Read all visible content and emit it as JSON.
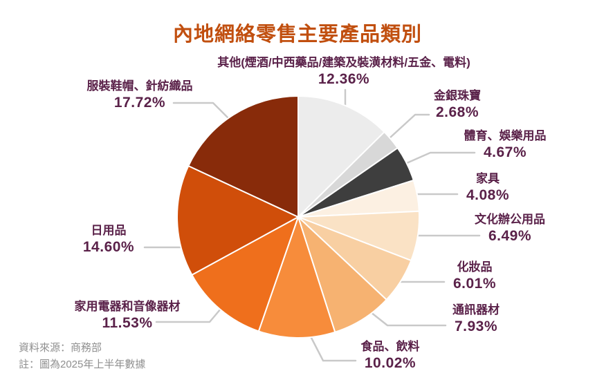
{
  "title": "內地網絡零售主要產品類別",
  "footer": {
    "source": "資料來源：商務部",
    "note": "註：圖為2025年上半年數據"
  },
  "colors": {
    "title": "#C14F0F",
    "label_text": "#5A2149",
    "leader_line": "#C9C9C9",
    "footer_text": "#8F8F8F",
    "background": "#FFFFFF"
  },
  "chart_data": {
    "type": "pie",
    "title": "內地網絡零售主要產品類別",
    "legend_position": "labels-around-pie",
    "start_angle_deg": 0,
    "direction": "clockwise-from-top",
    "slices": [
      {
        "name": "其他(煙酒/中西藥品/建築及裝潢材料/五金、電料)",
        "value": 12.36,
        "pct": "12.36%",
        "color": "#ECECEC"
      },
      {
        "name": "金銀珠寶",
        "value": 2.68,
        "pct": "2.68%",
        "color": "#D8D8D8"
      },
      {
        "name": "體育、娛樂用品",
        "value": 4.67,
        "pct": "4.67%",
        "color": "#3E3E3E"
      },
      {
        "name": "家具",
        "value": 4.08,
        "pct": "4.08%",
        "color": "#FCF0E2"
      },
      {
        "name": "文化辦公用品",
        "value": 6.49,
        "pct": "6.49%",
        "color": "#FAE2C5"
      },
      {
        "name": "化妝品",
        "value": 6.01,
        "pct": "6.01%",
        "color": "#F8CFA2"
      },
      {
        "name": "通訊器材",
        "value": 7.93,
        "pct": "7.93%",
        "color": "#F6B271"
      },
      {
        "name": "食品、飲料",
        "value": 10.02,
        "pct": "10.02%",
        "color": "#F78C3B"
      },
      {
        "name": "家用電器和音像器材",
        "value": 11.53,
        "pct": "11.53%",
        "color": "#EF6F1C"
      },
      {
        "name": "日用品",
        "value": 14.6,
        "pct": "14.60%",
        "color": "#D04E0A"
      },
      {
        "name": "服裝鞋帽、針紡織品",
        "value": 17.72,
        "pct": "17.72%",
        "color": "#882B0A"
      }
    ]
  }
}
